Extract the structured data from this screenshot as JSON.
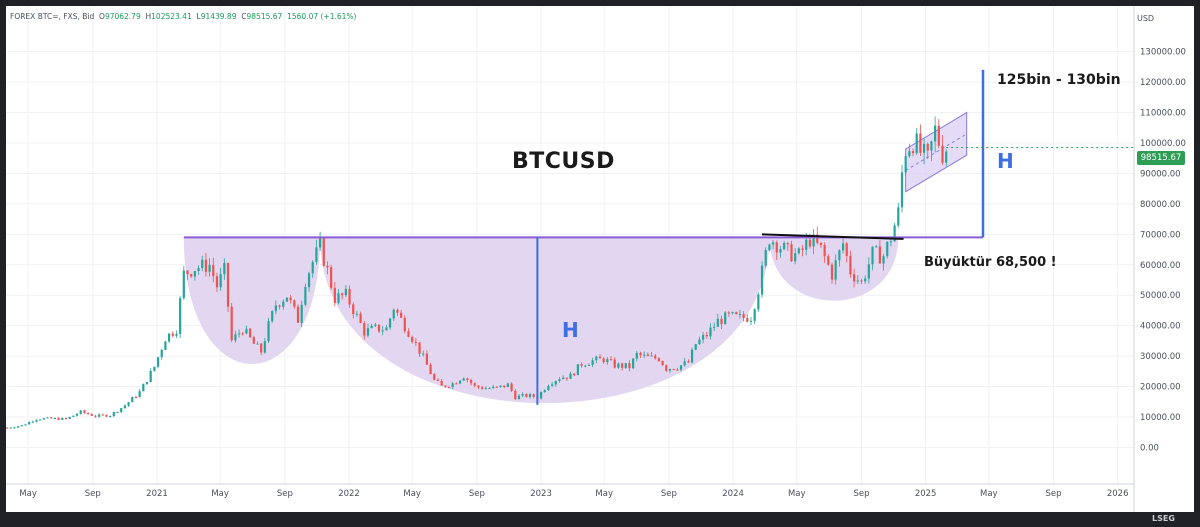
{
  "header": {
    "symbol": "FOREX BTC=, FXS, Bid",
    "open_label": "O",
    "open": "97062.79",
    "high_label": "H",
    "high": "102523.41",
    "low_label": "L",
    "low": "91439.89",
    "close_label": "C",
    "close": "98515.67",
    "change": "1560.07 (+1.61%)"
  },
  "currency": "USD",
  "last_price": "98515.67",
  "footer_brand": "LSEG",
  "colors": {
    "up": "#26a69a",
    "down": "#ef5350",
    "pattern_fill": "#e0d1ee",
    "neckline": "#8b5bd6",
    "measure": "#3d6fe3",
    "price_tag": "#2f9e55"
  },
  "annotations": {
    "title": "BTCUSD",
    "target": "125bin - 130bin",
    "breakout": "Büyüktür 68,500 !",
    "height_label_1": "H",
    "height_label_2": "H"
  },
  "chart_data": {
    "type": "candlestick",
    "title": "BTCUSD",
    "ylabel": "USD",
    "ylim": [
      -12000,
      145000
    ],
    "y_ticks": [
      0,
      10000,
      20000,
      30000,
      40000,
      50000,
      60000,
      70000,
      80000,
      90000,
      100000,
      110000,
      120000,
      130000
    ],
    "y_tick_labels": [
      "0.00",
      "10000.00",
      "20000.00",
      "30000.00",
      "40000.00",
      "50000.00",
      "60000.00",
      "70000.00",
      "80000.00",
      "90000.00",
      "100000.00",
      "110000.00",
      "120000.00",
      "130000.00"
    ],
    "x_range": [
      "2020-03-20",
      "2026-02-01"
    ],
    "x_ticks": [
      {
        "date": "2020-05-01",
        "label": "May"
      },
      {
        "date": "2020-09-01",
        "label": "Sep"
      },
      {
        "date": "2021-01-01",
        "label": "2021"
      },
      {
        "date": "2021-05-01",
        "label": "May"
      },
      {
        "date": "2021-09-01",
        "label": "Sep"
      },
      {
        "date": "2022-01-01",
        "label": "2022"
      },
      {
        "date": "2022-05-01",
        "label": "May"
      },
      {
        "date": "2022-09-01",
        "label": "Sep"
      },
      {
        "date": "2023-01-01",
        "label": "2023"
      },
      {
        "date": "2023-05-01",
        "label": "May"
      },
      {
        "date": "2023-09-01",
        "label": "Sep"
      },
      {
        "date": "2024-01-01",
        "label": "2024"
      },
      {
        "date": "2024-05-01",
        "label": "May"
      },
      {
        "date": "2024-09-01",
        "label": "Sep"
      },
      {
        "date": "2025-01-01",
        "label": "2025"
      },
      {
        "date": "2025-05-01",
        "label": "May"
      },
      {
        "date": "2025-09-01",
        "label": "Sep"
      },
      {
        "date": "2026-01-01",
        "label": "2026"
      }
    ],
    "series": [
      {
        "type": "weekly-close",
        "points": [
          [
            "2020-03-22",
            6500
          ],
          [
            "2020-04-19",
            7200
          ],
          [
            "2020-05-17",
            9400
          ],
          [
            "2020-06-14",
            9500
          ],
          [
            "2020-07-12",
            9300
          ],
          [
            "2020-08-09",
            11700
          ],
          [
            "2020-09-06",
            10300
          ],
          [
            "2020-10-04",
            10600
          ],
          [
            "2020-11-01",
            13800
          ],
          [
            "2020-11-29",
            18200
          ],
          [
            "2020-12-27",
            26500
          ],
          [
            "2021-01-17",
            36000
          ],
          [
            "2021-02-07",
            39000
          ],
          [
            "2021-02-21",
            57000
          ],
          [
            "2021-03-14",
            59000
          ],
          [
            "2021-04-11",
            60000
          ],
          [
            "2021-04-25",
            53000
          ],
          [
            "2021-05-09",
            58000
          ],
          [
            "2021-05-23",
            35000
          ],
          [
            "2021-06-13",
            39000
          ],
          [
            "2021-07-04",
            34000
          ],
          [
            "2021-07-18",
            31500
          ],
          [
            "2021-08-01",
            40000
          ],
          [
            "2021-08-15",
            47000
          ],
          [
            "2021-09-05",
            50000
          ],
          [
            "2021-09-26",
            42000
          ],
          [
            "2021-10-10",
            55000
          ],
          [
            "2021-10-24",
            61000
          ],
          [
            "2021-11-07",
            66000
          ],
          [
            "2021-11-21",
            58000
          ],
          [
            "2021-12-05",
            49000
          ],
          [
            "2021-12-26",
            50000
          ],
          [
            "2022-01-16",
            43000
          ],
          [
            "2022-01-30",
            38000
          ],
          [
            "2022-02-20",
            39000
          ],
          [
            "2022-03-13",
            39000
          ],
          [
            "2022-03-27",
            46000
          ],
          [
            "2022-04-17",
            40000
          ],
          [
            "2022-05-08",
            34000
          ],
          [
            "2022-05-22",
            29500
          ],
          [
            "2022-06-12",
            22000
          ],
          [
            "2022-06-26",
            20000
          ],
          [
            "2022-07-17",
            21000
          ],
          [
            "2022-08-07",
            23500
          ],
          [
            "2022-08-28",
            20000
          ],
          [
            "2022-09-18",
            19500
          ],
          [
            "2022-10-09",
            19500
          ],
          [
            "2022-10-30",
            20600
          ],
          [
            "2022-11-13",
            16600
          ],
          [
            "2022-12-04",
            17000
          ],
          [
            "2022-12-25",
            16600
          ],
          [
            "2023-01-15",
            21000
          ],
          [
            "2023-02-05",
            23000
          ],
          [
            "2023-02-26",
            23500
          ],
          [
            "2023-03-19",
            27500
          ],
          [
            "2023-04-09",
            28500
          ],
          [
            "2023-04-30",
            29000
          ],
          [
            "2023-05-21",
            27000
          ],
          [
            "2023-06-18",
            26500
          ],
          [
            "2023-07-02",
            30500
          ],
          [
            "2023-07-23",
            29500
          ],
          [
            "2023-08-13",
            29300
          ],
          [
            "2023-08-27",
            26000
          ],
          [
            "2023-09-17",
            26500
          ],
          [
            "2023-10-08",
            27900
          ],
          [
            "2023-10-22",
            34000
          ],
          [
            "2023-11-12",
            37000
          ],
          [
            "2023-12-03",
            41500
          ],
          [
            "2023-12-24",
            43000
          ],
          [
            "2024-01-14",
            42500
          ],
          [
            "2024-02-04",
            43000
          ],
          [
            "2024-02-18",
            52000
          ],
          [
            "2024-03-10",
            69000
          ],
          [
            "2024-03-24",
            67000
          ],
          [
            "2024-04-14",
            64000
          ],
          [
            "2024-05-05",
            63000
          ],
          [
            "2024-05-26",
            68500
          ],
          [
            "2024-06-16",
            65000
          ],
          [
            "2024-07-07",
            57000
          ],
          [
            "2024-07-28",
            67000
          ],
          [
            "2024-08-11",
            58000
          ],
          [
            "2024-09-01",
            54000
          ],
          [
            "2024-09-22",
            63500
          ],
          [
            "2024-10-13",
            63000
          ],
          [
            "2024-10-27",
            69000
          ],
          [
            "2024-11-10",
            77000
          ],
          [
            "2024-11-17",
            90000
          ],
          [
            "2024-11-24",
            98000
          ],
          [
            "2024-12-08",
            101000
          ],
          [
            "2024-12-22",
            97000
          ],
          [
            "2025-01-05",
            94000
          ],
          [
            "2025-01-19",
            104000
          ],
          [
            "2025-02-02",
            97000
          ],
          [
            "2025-02-09",
            98515.67
          ]
        ]
      }
    ],
    "patterns": {
      "neckline_level": 69000,
      "left_cup": {
        "start": "2021-02-21",
        "end": "2021-11-07",
        "low": 27000
      },
      "main_cup": {
        "start": "2021-11-07",
        "end": "2024-03-10",
        "low": 14000
      },
      "handle": {
        "start": "2024-03-10",
        "end": "2024-11-10",
        "low": 48000
      },
      "measure_line": {
        "date": "2022-12-25",
        "from": 14000,
        "to": 69000
      },
      "target_line": {
        "date": "2025-04-20",
        "from": 69000,
        "to": 124000
      },
      "channel": {
        "start": "2024-11-24",
        "end": "2025-03-20",
        "lower_start": 84000,
        "upper_start": 98000,
        "slope_end_delta": 12000
      },
      "trendline": {
        "start": "2024-02-25",
        "end": "2024-11-20",
        "from": 70000,
        "to": 68500
      }
    }
  }
}
